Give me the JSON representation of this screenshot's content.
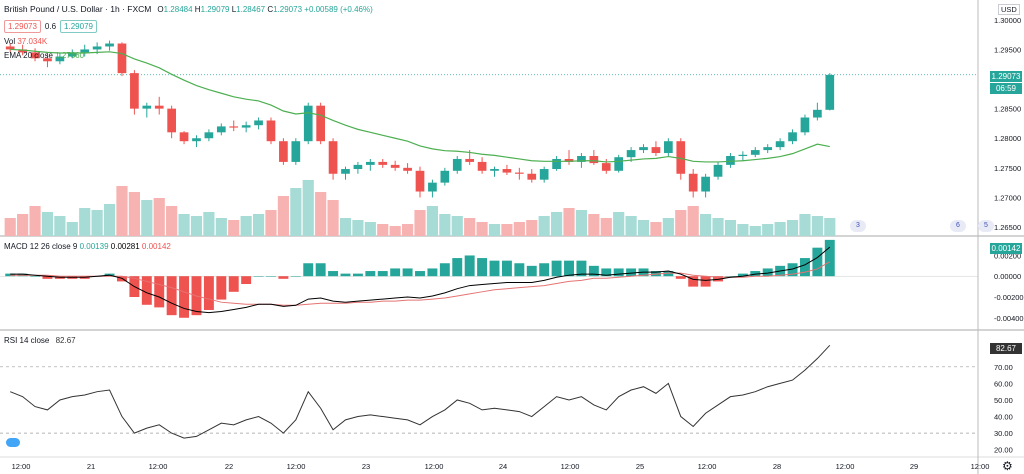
{
  "header": {
    "symbol": "British Pound / U.S. Dollar · 1h · FXCM",
    "open_label": "O",
    "open": "1.28484",
    "high_label": "H",
    "high": "1.29079",
    "low_label": "L",
    "low": "1.28467",
    "close_label": "C",
    "close": "1.29073",
    "change": "+0.00589 (+0.46%)",
    "bid": "1.29073",
    "spread": "0.6",
    "ask": "1.29079",
    "volume_label": "Vol",
    "volume_value": "37.034K",
    "ema_label": "EMA 20 close",
    "ema_value": "1.27860"
  },
  "price_scale": {
    "currency": "USD",
    "ticks": [
      "1.30000",
      "1.29500",
      "1.29000",
      "1.28500",
      "1.28000",
      "1.27500",
      "1.27000",
      "1.26500"
    ],
    "last_price": "1.29073",
    "countdown": "06:59"
  },
  "macd": {
    "label": "MACD 12 26 close 9",
    "v1": "0.00139",
    "v2": "0.00281",
    "v3": "0.00142",
    "ticks": [
      "0.00200",
      "0.00000",
      "-0.00200",
      "-0.00400"
    ],
    "last": "0.00142"
  },
  "rsi": {
    "label": "RSI 14 close",
    "value": "82.67",
    "ticks": [
      "80.00",
      "70.00",
      "60.00",
      "50.00",
      "40.00",
      "30.00",
      "20.00"
    ],
    "last": "82.67"
  },
  "time_axis": [
    "12:00",
    "21",
    "12:00",
    "22",
    "12:00",
    "23",
    "12:00",
    "24",
    "12:00",
    "25",
    "12:00",
    "28",
    "12:00",
    "29",
    "12:00"
  ],
  "events": [
    {
      "label": "3"
    },
    {
      "label": "6"
    },
    {
      "label": "5"
    }
  ],
  "colors": {
    "up": "#26a69a",
    "down": "#ef5350",
    "ema": "#4caf50",
    "macd_line": "#000000",
    "signal_line": "#e57373",
    "rsi_line": "#333333",
    "rsi_bands": "#9e9e9e"
  },
  "chart_data": {
    "type": "candlestick",
    "interval": "1h",
    "ylim": [
      1.2645,
      1.302
    ],
    "candles": [
      [
        1.2955,
        1.296,
        1.2945,
        1.295
      ],
      [
        1.295,
        1.2958,
        1.294,
        1.2945
      ],
      [
        1.2945,
        1.2952,
        1.293,
        1.2935
      ],
      [
        1.2935,
        1.2945,
        1.292,
        1.293
      ],
      [
        1.293,
        1.2945,
        1.2925,
        1.2938
      ],
      [
        1.2938,
        1.295,
        1.2935,
        1.2945
      ],
      [
        1.2945,
        1.2958,
        1.2938,
        1.295
      ],
      [
        1.295,
        1.2962,
        1.2942,
        1.2955
      ],
      [
        1.2955,
        1.2965,
        1.2948,
        1.296
      ],
      [
        1.296,
        1.2962,
        1.2905,
        1.291
      ],
      [
        1.291,
        1.2915,
        1.284,
        1.285
      ],
      [
        1.285,
        1.286,
        1.2835,
        1.2855
      ],
      [
        1.2855,
        1.287,
        1.284,
        1.285
      ],
      [
        1.285,
        1.2855,
        1.28,
        1.281
      ],
      [
        1.281,
        1.2812,
        1.279,
        1.2795
      ],
      [
        1.2795,
        1.2805,
        1.2785,
        1.28
      ],
      [
        1.28,
        1.2815,
        1.2795,
        1.281
      ],
      [
        1.281,
        1.2825,
        1.2805,
        1.282
      ],
      [
        1.282,
        1.283,
        1.2812,
        1.2818
      ],
      [
        1.2818,
        1.2828,
        1.281,
        1.2822
      ],
      [
        1.2822,
        1.2835,
        1.2815,
        1.283
      ],
      [
        1.283,
        1.2835,
        1.279,
        1.2795
      ],
      [
        1.2795,
        1.28,
        1.2755,
        1.276
      ],
      [
        1.276,
        1.28,
        1.2755,
        1.2795
      ],
      [
        1.2795,
        1.286,
        1.279,
        1.2855
      ],
      [
        1.2855,
        1.286,
        1.279,
        1.2795
      ],
      [
        1.2795,
        1.28,
        1.273,
        1.274
      ],
      [
        1.274,
        1.2752,
        1.273,
        1.2748
      ],
      [
        1.2748,
        1.276,
        1.274,
        1.2755
      ],
      [
        1.2755,
        1.2765,
        1.2745,
        1.276
      ],
      [
        1.276,
        1.2765,
        1.275,
        1.2755
      ],
      [
        1.2755,
        1.2762,
        1.2745,
        1.275
      ],
      [
        1.275,
        1.2758,
        1.274,
        1.2745
      ],
      [
        1.2745,
        1.2752,
        1.27,
        1.271
      ],
      [
        1.271,
        1.273,
        1.27,
        1.2725
      ],
      [
        1.2725,
        1.275,
        1.272,
        1.2745
      ],
      [
        1.2745,
        1.277,
        1.274,
        1.2765
      ],
      [
        1.2765,
        1.278,
        1.2755,
        1.276
      ],
      [
        1.276,
        1.2768,
        1.274,
        1.2745
      ],
      [
        1.2745,
        1.2752,
        1.2735,
        1.2748
      ],
      [
        1.2748,
        1.2755,
        1.2738,
        1.2742
      ],
      [
        1.2742,
        1.275,
        1.273,
        1.274
      ],
      [
        1.274,
        1.2748,
        1.2725,
        1.273
      ],
      [
        1.273,
        1.2752,
        1.2725,
        1.2748
      ],
      [
        1.2748,
        1.277,
        1.2745,
        1.2765
      ],
      [
        1.2765,
        1.278,
        1.2755,
        1.276
      ],
      [
        1.276,
        1.2775,
        1.275,
        1.277
      ],
      [
        1.277,
        1.278,
        1.2755,
        1.2758
      ],
      [
        1.2758,
        1.2765,
        1.274,
        1.2745
      ],
      [
        1.2745,
        1.2772,
        1.2742,
        1.2768
      ],
      [
        1.2768,
        1.2785,
        1.276,
        1.278
      ],
      [
        1.278,
        1.279,
        1.2775,
        1.2785
      ],
      [
        1.2785,
        1.2795,
        1.277,
        1.2775
      ],
      [
        1.2775,
        1.28,
        1.277,
        1.2795
      ],
      [
        1.2795,
        1.28,
        1.273,
        1.274
      ],
      [
        1.274,
        1.2748,
        1.27,
        1.271
      ],
      [
        1.271,
        1.274,
        1.27,
        1.2735
      ],
      [
        1.2735,
        1.276,
        1.273,
        1.2755
      ],
      [
        1.2755,
        1.2775,
        1.275,
        1.277
      ],
      [
        1.277,
        1.2778,
        1.2762,
        1.2772
      ],
      [
        1.2772,
        1.2785,
        1.2768,
        1.278
      ],
      [
        1.278,
        1.279,
        1.2775,
        1.2785
      ],
      [
        1.2785,
        1.28,
        1.278,
        1.2795
      ],
      [
        1.2795,
        1.2815,
        1.279,
        1.281
      ],
      [
        1.281,
        1.284,
        1.2805,
        1.2835
      ],
      [
        1.2835,
        1.286,
        1.283,
        1.2848
      ],
      [
        1.2848,
        1.291,
        1.2847,
        1.2907
      ]
    ],
    "volume": [
      [
        18,
        0
      ],
      [
        22,
        0
      ],
      [
        30,
        0
      ],
      [
        24,
        1
      ],
      [
        20,
        1
      ],
      [
        14,
        1
      ],
      [
        28,
        1
      ],
      [
        26,
        1
      ],
      [
        32,
        1
      ],
      [
        50,
        0
      ],
      [
        44,
        0
      ],
      [
        36,
        1
      ],
      [
        38,
        0
      ],
      [
        30,
        0
      ],
      [
        22,
        1
      ],
      [
        20,
        1
      ],
      [
        24,
        1
      ],
      [
        18,
        1
      ],
      [
        16,
        0
      ],
      [
        20,
        1
      ],
      [
        22,
        1
      ],
      [
        26,
        0
      ],
      [
        40,
        0
      ],
      [
        48,
        1
      ],
      [
        56,
        1
      ],
      [
        44,
        0
      ],
      [
        36,
        0
      ],
      [
        18,
        1
      ],
      [
        16,
        1
      ],
      [
        14,
        1
      ],
      [
        12,
        0
      ],
      [
        10,
        0
      ],
      [
        12,
        0
      ],
      [
        26,
        0
      ],
      [
        30,
        1
      ],
      [
        22,
        1
      ],
      [
        20,
        1
      ],
      [
        18,
        0
      ],
      [
        14,
        0
      ],
      [
        12,
        1
      ],
      [
        12,
        0
      ],
      [
        14,
        0
      ],
      [
        16,
        0
      ],
      [
        20,
        1
      ],
      [
        24,
        1
      ],
      [
        28,
        0
      ],
      [
        26,
        1
      ],
      [
        22,
        0
      ],
      [
        18,
        0
      ],
      [
        24,
        1
      ],
      [
        20,
        1
      ],
      [
        16,
        1
      ],
      [
        14,
        0
      ],
      [
        18,
        1
      ],
      [
        26,
        0
      ],
      [
        30,
        0
      ],
      [
        22,
        1
      ],
      [
        18,
        1
      ],
      [
        16,
        1
      ],
      [
        12,
        1
      ],
      [
        10,
        1
      ],
      [
        12,
        1
      ],
      [
        14,
        1
      ],
      [
        16,
        1
      ],
      [
        22,
        1
      ],
      [
        20,
        1
      ],
      [
        18,
        1
      ]
    ],
    "ema": [
      1.295,
      1.2949,
      1.2947,
      1.2945,
      1.2944,
      1.2944,
      1.2944,
      1.2945,
      1.2946,
      1.2943,
      1.2934,
      1.2927,
      1.2919,
      1.2908,
      1.2898,
      1.2889,
      1.2882,
      1.2876,
      1.287,
      1.2866,
      1.2863,
      1.2856,
      1.2846,
      1.2841,
      1.2843,
      1.2839,
      1.283,
      1.2822,
      1.2815,
      1.281,
      1.2805,
      1.28,
      1.2795,
      1.2787,
      1.2782,
      1.2779,
      1.2778,
      1.2776,
      1.2773,
      1.2771,
      1.2768,
      1.2765,
      1.2762,
      1.2761,
      1.2761,
      1.2761,
      1.2762,
      1.2762,
      1.276,
      1.2761,
      1.2763,
      1.2765,
      1.2766,
      1.2769,
      1.2766,
      1.2761,
      1.276,
      1.276,
      1.2761,
      1.2762,
      1.2764,
      1.2766,
      1.2769,
      1.2774,
      1.2782,
      1.279,
      1.2786
    ],
    "macd": [
      0.0002,
      0.0002,
      0.0001,
      0.0,
      -0.0001,
      -0.0001,
      -0.0001,
      0.0,
      0.0001,
      -0.0002,
      -0.001,
      -0.0016,
      -0.002,
      -0.0026,
      -0.0031,
      -0.0034,
      -0.0035,
      -0.0034,
      -0.0032,
      -0.003,
      -0.0027,
      -0.0027,
      -0.0029,
      -0.0028,
      -0.0022,
      -0.0021,
      -0.0024,
      -0.0025,
      -0.0024,
      -0.0023,
      -0.0022,
      -0.0021,
      -0.002,
      -0.0021,
      -0.0019,
      -0.0016,
      -0.0012,
      -0.0009,
      -0.0008,
      -0.0007,
      -0.0006,
      -0.0006,
      -0.0006,
      -0.0004,
      -0.0001,
      0.0001,
      0.0002,
      0.0002,
      0.0001,
      0.0002,
      0.0003,
      0.0004,
      0.0004,
      0.0005,
      0.0002,
      -0.0003,
      -0.0004,
      -0.0003,
      -0.0001,
      0.0,
      0.0002,
      0.0003,
      0.0005,
      0.0007,
      0.0011,
      0.0018,
      0.0028
    ],
    "signal": [
      0.0001,
      0.0001,
      0.0001,
      0.0001,
      0.0,
      0.0,
      0.0,
      0.0,
      0.0,
      0.0,
      -0.0002,
      -0.0005,
      -0.0008,
      -0.0011,
      -0.0015,
      -0.0019,
      -0.0022,
      -0.0025,
      -0.0026,
      -0.0027,
      -0.0027,
      -0.0027,
      -0.0028,
      -0.0028,
      -0.0027,
      -0.0026,
      -0.0026,
      -0.0026,
      -0.0025,
      -0.0025,
      -0.0024,
      -0.0024,
      -0.0023,
      -0.0023,
      -0.0022,
      -0.0021,
      -0.0019,
      -0.0017,
      -0.0015,
      -0.0013,
      -0.0012,
      -0.0011,
      -0.001,
      -0.0009,
      -0.0007,
      -0.0005,
      -0.0004,
      -0.0002,
      -0.0002,
      -0.0001,
      0.0,
      0.0001,
      0.0002,
      0.0003,
      0.0003,
      0.0001,
      0.0,
      -0.0001,
      -0.0001,
      -0.0001,
      0.0,
      0.0,
      0.0001,
      0.0002,
      0.0004,
      0.0007,
      0.0014
    ],
    "rsi": [
      55,
      52,
      46,
      44,
      50,
      52,
      53,
      55,
      56,
      40,
      30,
      33,
      35,
      30,
      27,
      28,
      32,
      36,
      35,
      38,
      40,
      36,
      30,
      38,
      55,
      45,
      32,
      38,
      40,
      41,
      40,
      39,
      38,
      35,
      40,
      44,
      50,
      48,
      44,
      45,
      44,
      43,
      40,
      46,
      52,
      50,
      52,
      47,
      44,
      52,
      56,
      58,
      54,
      60,
      40,
      34,
      42,
      47,
      52,
      53,
      55,
      58,
      60,
      62,
      68,
      75,
      83
    ]
  }
}
